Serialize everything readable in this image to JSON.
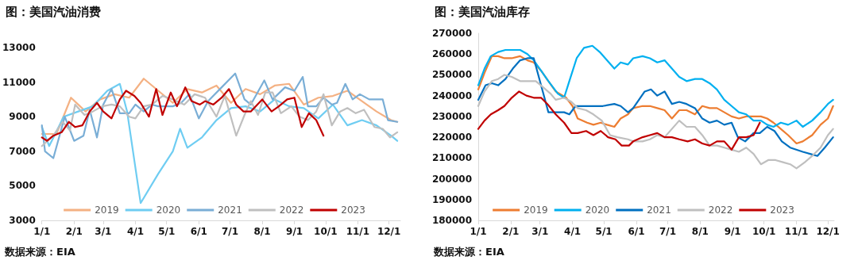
{
  "chart_data": [
    {
      "type": "line",
      "title": "图：美国汽油消费",
      "annotations": [
        "数据来源：EIA"
      ],
      "legend": "bottom",
      "marker": "none",
      "line_style": "solid",
      "xlim": [
        "--01-01",
        "--12-12"
      ],
      "xticks": [
        {
          "value": "--01-01",
          "label": "1/1"
        },
        {
          "value": "--02-01",
          "label": "2/1"
        },
        {
          "value": "--03-01",
          "label": "3/1"
        },
        {
          "value": "--04-01",
          "label": "4/1"
        },
        {
          "value": "--05-01",
          "label": "5/1"
        },
        {
          "value": "--06-01",
          "label": "6/1"
        },
        {
          "value": "--07-01",
          "label": "7/1"
        },
        {
          "value": "--08-01",
          "label": "8/1"
        },
        {
          "value": "--09-01",
          "label": "9/1"
        },
        {
          "value": "--10-01",
          "label": "10/1"
        },
        {
          "value": "--11-01",
          "label": "11/1"
        },
        {
          "value": "--12-01",
          "label": "12/1"
        }
      ],
      "ylim": [
        3000,
        13000
      ],
      "yticks": [
        3000,
        5000,
        7000,
        9000,
        11000,
        13000
      ],
      "series": [
        {
          "name": "2019",
          "color": "#f4b183",
          "x": [
            "--01-01",
            "--01-15",
            "--01-29",
            "--02-12",
            "--02-26",
            "--03-12",
            "--03-26",
            "--04-09",
            "--04-23",
            "--05-07",
            "--05-21",
            "--06-04",
            "--06-18",
            "--07-02",
            "--07-16",
            "--07-30",
            "--08-13",
            "--08-27",
            "--09-10",
            "--09-24",
            "--10-08",
            "--10-22",
            "--11-05",
            "--11-19",
            "--12-03",
            "--12-09"
          ],
          "values": [
            8000,
            8000,
            10100,
            9300,
            10000,
            10300,
            10100,
            11200,
            10500,
            9800,
            10600,
            10400,
            10800,
            9800,
            10600,
            10300,
            10800,
            10900,
            9700,
            10100,
            10200,
            10500,
            9900,
            9300,
            8800,
            8700
          ]
        },
        {
          "name": "2020",
          "color": "#6fcdf2",
          "x": [
            "--01-01",
            "--01-08",
            "--01-22",
            "--02-05",
            "--02-19",
            "--03-05",
            "--03-17",
            "--03-24",
            "--04-06",
            "--04-23",
            "--05-07",
            "--05-14",
            "--05-21",
            "--06-04",
            "--06-18",
            "--07-02",
            "--07-16",
            "--07-30",
            "--08-13",
            "--08-27",
            "--09-10",
            "--09-24",
            "--10-08",
            "--10-22",
            "--11-05",
            "--11-19",
            "--12-03",
            "--12-09"
          ],
          "values": [
            8400,
            7300,
            9000,
            9300,
            9600,
            10500,
            10900,
            9300,
            4000,
            5700,
            7000,
            8300,
            7200,
            7800,
            8800,
            9500,
            9600,
            9300,
            10000,
            9600,
            9500,
            8900,
            9700,
            8500,
            8800,
            8500,
            7900,
            7600
          ]
        },
        {
          "name": "2021",
          "color": "#7aaed6",
          "x": [
            "--01-01",
            "--01-04",
            "--01-12",
            "--01-23",
            "--02-01",
            "--02-10",
            "--02-16",
            "--02-23",
            "--03-01",
            "--03-09",
            "--03-17",
            "--03-26",
            "--04-01",
            "--04-09",
            "--04-17",
            "--04-23",
            "--05-02",
            "--05-07",
            "--05-15",
            "--05-23",
            "--06-01",
            "--06-10",
            "--06-23",
            "--07-06",
            "--07-15",
            "--07-21",
            "--08-03",
            "--08-11",
            "--08-23",
            "--09-01",
            "--09-09",
            "--09-14",
            "--09-22",
            "--09-29",
            "--10-07",
            "--10-12",
            "--10-20",
            "--10-27",
            "--11-03",
            "--11-12",
            "--11-25",
            "--11-30",
            "--12-09"
          ],
          "values": [
            8500,
            7000,
            6600,
            9000,
            7600,
            7900,
            9400,
            7800,
            9700,
            10600,
            9200,
            9200,
            9700,
            9300,
            9700,
            9600,
            9600,
            9600,
            9800,
            10300,
            8900,
            9900,
            10700,
            11500,
            10000,
            9700,
            11100,
            10000,
            10700,
            10500,
            11300,
            9600,
            9600,
            10100,
            9700,
            9800,
            10900,
            10000,
            10300,
            10000,
            10000,
            8800,
            8700
          ]
        },
        {
          "name": "2022",
          "color": "#bfbfbf",
          "x": [
            "--01-01",
            "--01-12",
            "--01-21",
            "--01-28",
            "--02-02",
            "--02-11",
            "--02-19",
            "--02-28",
            "--03-09",
            "--03-17",
            "--03-26",
            "--04-01",
            "--04-09",
            "--04-17",
            "--04-27",
            "--05-07",
            "--05-18",
            "--05-28",
            "--06-07",
            "--06-18",
            "--06-26",
            "--07-07",
            "--07-15",
            "--07-21",
            "--07-28",
            "--08-04",
            "--08-11",
            "--08-19",
            "--08-29",
            "--09-06",
            "--09-14",
            "--09-22",
            "--09-29",
            "--10-07",
            "--10-15",
            "--10-22",
            "--10-30",
            "--11-07",
            "--11-17",
            "--11-25",
            "--12-02",
            "--12-09"
          ],
          "values": [
            7300,
            7900,
            8700,
            8200,
            9700,
            9100,
            9300,
            9600,
            9700,
            9600,
            9000,
            8900,
            9600,
            9700,
            10200,
            10000,
            9700,
            10300,
            10100,
            9000,
            10200,
            7900,
            9100,
            9900,
            9100,
            10400,
            10400,
            9200,
            9600,
            9000,
            8800,
            9300,
            10300,
            8500,
            9300,
            9500,
            9200,
            9400,
            8400,
            8300,
            7800,
            8100
          ]
        },
        {
          "name": "2023",
          "color": "#c00000",
          "x": [
            "--01-01",
            "--01-06",
            "--01-12",
            "--01-20",
            "--01-27",
            "--02-02",
            "--02-09",
            "--02-16",
            "--02-23",
            "--03-01",
            "--03-09",
            "--03-17",
            "--03-23",
            "--03-31",
            "--04-06",
            "--04-14",
            "--04-21",
            "--04-27",
            "--05-05",
            "--05-11",
            "--05-19",
            "--05-25",
            "--06-02",
            "--06-07",
            "--06-15",
            "--06-23",
            "--06-30",
            "--07-07",
            "--07-14",
            "--07-21",
            "--08-01",
            "--08-10",
            "--08-17",
            "--08-25",
            "--09-01",
            "--09-08",
            "--09-15",
            "--09-22",
            "--09-29"
          ],
          "values": [
            7800,
            7600,
            7900,
            8100,
            8700,
            8400,
            8500,
            9300,
            9800,
            9300,
            8900,
            10000,
            10500,
            10200,
            9800,
            9000,
            10600,
            9100,
            10400,
            9600,
            10700,
            9900,
            9700,
            9900,
            9700,
            10100,
            10600,
            9700,
            9300,
            9300,
            10000,
            9300,
            9600,
            10000,
            10100,
            8400,
            9200,
            8800,
            7900
          ]
        }
      ]
    },
    {
      "type": "line",
      "title": "图：美国汽油库存",
      "annotations": [
        "数据来源：EIA"
      ],
      "legend": "bottom",
      "marker": "none",
      "line_style": "solid",
      "xlim": [
        "--01-01",
        "--12-07"
      ],
      "xticks": [
        {
          "value": "--01-01",
          "label": "1/1"
        },
        {
          "value": "--02-01",
          "label": "2/1"
        },
        {
          "value": "--03-01",
          "label": "3/1"
        },
        {
          "value": "--04-01",
          "label": "4/1"
        },
        {
          "value": "--05-01",
          "label": "5/1"
        },
        {
          "value": "--06-01",
          "label": "6/1"
        },
        {
          "value": "--07-01",
          "label": "7/1"
        },
        {
          "value": "--08-01",
          "label": "8/1"
        },
        {
          "value": "--09-01",
          "label": "9/1"
        },
        {
          "value": "--10-01",
          "label": "10/1"
        },
        {
          "value": "--11-01",
          "label": "11/1"
        },
        {
          "value": "--12-01",
          "label": "12/1"
        }
      ],
      "ylim": [
        180000,
        270000
      ],
      "yticks": [
        180000,
        190000,
        200000,
        210000,
        220000,
        230000,
        240000,
        250000,
        260000,
        270000
      ],
      "series": [
        {
          "name": "2019",
          "color": "#ed7d31",
          "x": [
            "--01-01",
            "--01-07",
            "--01-14",
            "--01-20",
            "--01-26",
            "--02-02",
            "--02-10",
            "--02-17",
            "--02-23",
            "--03-02",
            "--03-09",
            "--03-16",
            "--03-26",
            "--04-01",
            "--04-06",
            "--04-15",
            "--04-21",
            "--04-28",
            "--05-04",
            "--05-11",
            "--05-17",
            "--05-24",
            "--05-29",
            "--06-07",
            "--06-14",
            "--06-21",
            "--06-28",
            "--07-05",
            "--07-12",
            "--07-19",
            "--07-27",
            "--08-03",
            "--08-10",
            "--08-17",
            "--08-24",
            "--08-31",
            "--09-07",
            "--09-14",
            "--09-21",
            "--09-28",
            "--10-04",
            "--10-10",
            "--10-17",
            "--10-24",
            "--11-01",
            "--11-07",
            "--11-16",
            "--11-24",
            "--12-01",
            "--12-06"
          ],
          "values": [
            243000,
            251000,
            259000,
            259000,
            258000,
            258000,
            259000,
            257000,
            256000,
            252000,
            247000,
            242000,
            239000,
            235000,
            229000,
            227000,
            226000,
            227000,
            226000,
            225000,
            229000,
            231000,
            234000,
            235000,
            235000,
            234000,
            233000,
            229000,
            233000,
            233000,
            231000,
            235000,
            234000,
            234000,
            232000,
            230000,
            229000,
            230000,
            230000,
            230000,
            229000,
            227000,
            224000,
            221000,
            217000,
            218000,
            221000,
            226000,
            229000,
            235000
          ]
        },
        {
          "name": "2020",
          "color": "#00b0f0",
          "x": [
            "--01-01",
            "--01-07",
            "--01-13",
            "--01-20",
            "--01-27",
            "--02-10",
            "--02-17",
            "--02-23",
            "--03-02",
            "--03-09",
            "--03-18",
            "--03-24",
            "--03-29",
            "--04-05",
            "--04-12",
            "--04-20",
            "--04-27",
            "--05-04",
            "--05-11",
            "--05-17",
            "--05-24",
            "--05-29",
            "--06-07",
            "--06-14",
            "--06-21",
            "--06-28",
            "--07-05",
            "--07-12",
            "--07-19",
            "--07-27",
            "--08-03",
            "--08-10",
            "--08-17",
            "--08-24",
            "--08-31",
            "--09-07",
            "--09-14",
            "--09-21",
            "--09-28",
            "--10-04",
            "--10-10",
            "--10-17",
            "--10-24",
            "--11-01",
            "--11-07",
            "--11-16",
            "--11-24",
            "--12-01",
            "--12-06"
          ],
          "values": [
            245000,
            253000,
            259000,
            261000,
            262000,
            262000,
            260000,
            257000,
            252000,
            247000,
            241000,
            239000,
            247000,
            258000,
            263000,
            264000,
            261000,
            257000,
            253000,
            256000,
            255000,
            258000,
            259000,
            258000,
            256000,
            257000,
            253000,
            249000,
            247000,
            248000,
            248000,
            246000,
            243000,
            238000,
            235000,
            232000,
            231000,
            228000,
            228000,
            226000,
            225000,
            227000,
            226000,
            228000,
            225000,
            228000,
            232000,
            236000,
            238000
          ]
        },
        {
          "name": "2021",
          "color": "#0070c0",
          "x": [
            "--01-01",
            "--01-08",
            "--01-14",
            "--01-20",
            "--01-27",
            "--02-03",
            "--02-10",
            "--02-17",
            "--02-23",
            "--03-02",
            "--03-09",
            "--03-16",
            "--03-24",
            "--03-29",
            "--04-04",
            "--04-14",
            "--04-21",
            "--04-30",
            "--05-11",
            "--05-17",
            "--05-24",
            "--05-29",
            "--06-09",
            "--06-15",
            "--06-21",
            "--06-28",
            "--07-05",
            "--07-12",
            "--07-19",
            "--07-27",
            "--08-03",
            "--08-10",
            "--08-17",
            "--08-24",
            "--08-31",
            "--09-06",
            "--09-13",
            "--09-21",
            "--09-27",
            "--10-04",
            "--10-11",
            "--10-18",
            "--10-26",
            "--11-07",
            "--11-14",
            "--11-21",
            "--11-28",
            "--12-06"
          ],
          "values": [
            238000,
            245000,
            246000,
            245000,
            248000,
            253000,
            257000,
            258000,
            258000,
            245000,
            232000,
            232000,
            232000,
            231000,
            235000,
            235000,
            235000,
            235000,
            236000,
            235000,
            232000,
            234000,
            242000,
            243000,
            240000,
            242000,
            236000,
            237000,
            236000,
            234000,
            229000,
            227000,
            228000,
            226000,
            227000,
            220000,
            218000,
            222000,
            222000,
            225000,
            223000,
            218000,
            215000,
            213000,
            212000,
            211000,
            215000,
            220000
          ]
        },
        {
          "name": "2022",
          "color": "#bfbfbf",
          "x": [
            "--01-01",
            "--01-07",
            "--01-14",
            "--01-20",
            "--01-26",
            "--02-02",
            "--02-10",
            "--02-17",
            "--02-25",
            "--03-04",
            "--03-11",
            "--03-16",
            "--03-24",
            "--03-31",
            "--04-06",
            "--04-14",
            "--04-21",
            "--04-29",
            "--05-07",
            "--05-14",
            "--05-24",
            "--05-29",
            "--06-07",
            "--06-14",
            "--06-21",
            "--06-28",
            "--07-05",
            "--07-12",
            "--07-19",
            "--07-27",
            "--08-03",
            "--08-10",
            "--08-17",
            "--08-24",
            "--08-31",
            "--09-07",
            "--09-14",
            "--09-21",
            "--09-28",
            "--10-05",
            "--10-12",
            "--10-19",
            "--10-26",
            "--11-01",
            "--11-09",
            "--11-16",
            "--11-24",
            "--12-01",
            "--12-06"
          ],
          "values": [
            235000,
            242000,
            247000,
            248000,
            250000,
            249000,
            247000,
            247000,
            247000,
            244000,
            241000,
            238000,
            239000,
            237000,
            234000,
            233000,
            231000,
            228000,
            221000,
            220000,
            219000,
            218000,
            218000,
            219000,
            221000,
            220000,
            224000,
            228000,
            225000,
            225000,
            221000,
            216000,
            216000,
            215000,
            214000,
            213000,
            215000,
            212000,
            207000,
            209000,
            209000,
            208000,
            207000,
            205000,
            208000,
            211000,
            215000,
            221000,
            224000
          ]
        },
        {
          "name": "2023",
          "color": "#c00000",
          "x": [
            "--01-01",
            "--01-07",
            "--01-13",
            "--01-20",
            "--01-26",
            "--02-02",
            "--02-09",
            "--02-16",
            "--02-23",
            "--03-02",
            "--03-08",
            "--03-16",
            "--03-24",
            "--03-31",
            "--04-06",
            "--04-14",
            "--04-21",
            "--04-28",
            "--05-05",
            "--05-12",
            "--05-18",
            "--05-25",
            "--05-29",
            "--06-07",
            "--06-14",
            "--06-21",
            "--06-28",
            "--07-05",
            "--07-12",
            "--07-20",
            "--07-27",
            "--08-03",
            "--08-10",
            "--08-17",
            "--08-24",
            "--08-31",
            "--09-07",
            "--09-14",
            "--09-21",
            "--09-27"
          ],
          "values": [
            224000,
            228000,
            231000,
            233000,
            235000,
            239000,
            242000,
            240000,
            239000,
            239000,
            236000,
            231000,
            227000,
            222000,
            222000,
            223000,
            221000,
            223000,
            220000,
            219000,
            216000,
            216000,
            218000,
            220000,
            221000,
            222000,
            220000,
            220000,
            219000,
            218000,
            219000,
            217000,
            216000,
            218000,
            218000,
            214000,
            220000,
            220000,
            221000,
            227000
          ]
        }
      ]
    }
  ]
}
